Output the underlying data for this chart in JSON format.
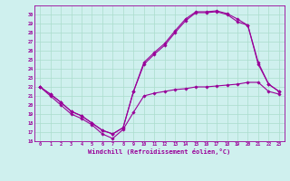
{
  "xlabel": "Windchill (Refroidissement éolien,°C)",
  "xlim": [
    -0.5,
    23.5
  ],
  "ylim": [
    16,
    31
  ],
  "yticks": [
    16,
    17,
    18,
    19,
    20,
    21,
    22,
    23,
    24,
    25,
    26,
    27,
    28,
    29,
    30
  ],
  "xticks": [
    0,
    1,
    2,
    3,
    4,
    5,
    6,
    7,
    8,
    9,
    10,
    11,
    12,
    13,
    14,
    15,
    16,
    17,
    18,
    19,
    20,
    21,
    22,
    23
  ],
  "bg_color": "#cff0ee",
  "line_color": "#990099",
  "grid_color": "#aaddcc",
  "series": [
    {
      "x": [
        0,
        1,
        2,
        3,
        4,
        5,
        6,
        7,
        8,
        9,
        10,
        11,
        12,
        13,
        14,
        15,
        16,
        17,
        18,
        19,
        20,
        21,
        22,
        23
      ],
      "y": [
        22,
        21,
        20,
        19,
        18.5,
        17.8,
        16.8,
        16.3,
        17.3,
        19.2,
        21.0,
        21.3,
        21.5,
        21.7,
        21.8,
        22.0,
        22.0,
        22.1,
        22.2,
        22.3,
        22.5,
        22.5,
        21.5,
        21.2
      ]
    },
    {
      "x": [
        0,
        1,
        2,
        3,
        4,
        5,
        6,
        7,
        8,
        9,
        10,
        11,
        12,
        13,
        14,
        15,
        16,
        17,
        18,
        19,
        20,
        21,
        22,
        23
      ],
      "y": [
        22,
        21.2,
        20.3,
        19.3,
        18.8,
        18.0,
        17.2,
        16.8,
        17.5,
        21.5,
        24.5,
        25.6,
        26.6,
        28.0,
        29.3,
        30.2,
        30.2,
        30.3,
        30.0,
        29.2,
        28.8,
        24.5,
        22.3,
        21.5
      ]
    },
    {
      "x": [
        0,
        1,
        2,
        3,
        4,
        5,
        6,
        7,
        8,
        9,
        10,
        11,
        12,
        13,
        14,
        15,
        16,
        17,
        18,
        19,
        20,
        21,
        22,
        23
      ],
      "y": [
        22,
        21.2,
        20.3,
        19.3,
        18.8,
        18.0,
        17.2,
        16.8,
        17.5,
        21.5,
        24.7,
        25.8,
        26.8,
        28.2,
        29.5,
        30.3,
        30.3,
        30.4,
        30.1,
        29.5,
        28.8,
        24.7,
        22.3,
        21.5
      ]
    }
  ]
}
